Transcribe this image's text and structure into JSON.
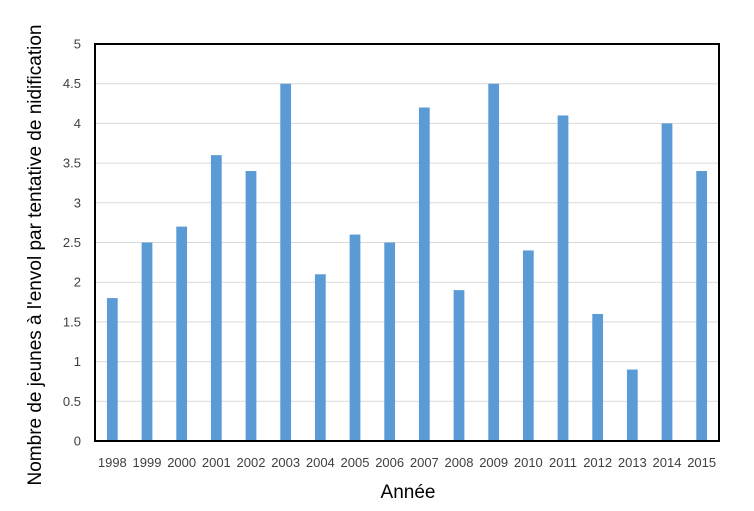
{
  "chart_data": {
    "type": "bar",
    "title": "",
    "xlabel": "Année",
    "ylabel": "Nombre de jeunes à l'envol par tentative de nidification",
    "categories": [
      "1998",
      "1999",
      "2000",
      "2001",
      "2002",
      "2003",
      "2004",
      "2005",
      "2006",
      "2007",
      "2008",
      "2009",
      "2010",
      "2011",
      "2012",
      "2013",
      "2014",
      "2015"
    ],
    "values": [
      1.8,
      2.5,
      2.7,
      3.6,
      3.4,
      4.5,
      2.1,
      2.6,
      2.5,
      4.2,
      1.9,
      4.5,
      2.4,
      4.1,
      1.6,
      0.9,
      4.0,
      3.4
    ],
    "ylim": [
      0,
      5
    ],
    "yticks": [
      "0",
      "0.5",
      "1",
      "1.5",
      "2",
      "2.5",
      "3",
      "3.5",
      "4",
      "4.5",
      "5"
    ],
    "grid": true,
    "legend": "none",
    "colors": {
      "bar": "#5b9bd5",
      "grid": "#d9d9d9",
      "frame": "#000000"
    }
  }
}
